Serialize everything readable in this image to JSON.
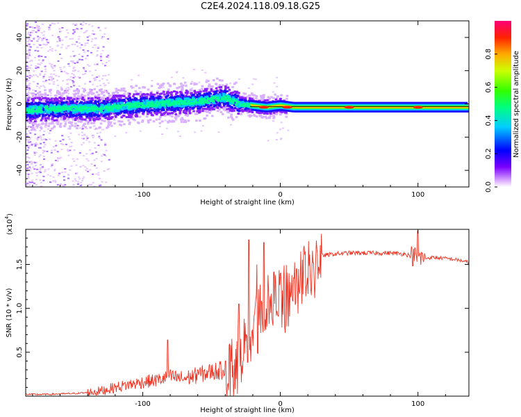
{
  "title": "C2E4.2024.118.09.18.G25",
  "chart_data": [
    {
      "type": "heatmap",
      "name": "spectrogram",
      "xlabel": "Height of straight line (km)",
      "ylabel": "Frequency (Hz)",
      "xlim": [
        -185,
        137
      ],
      "ylim": [
        -50,
        50
      ],
      "xticks": [
        -100,
        0,
        100
      ],
      "yticks": [
        -40,
        -20,
        0,
        20,
        40
      ],
      "grid": false,
      "colorbar": {
        "label": "Normalized spectral amplitude",
        "range": [
          0.0,
          1.0
        ],
        "ticks": [
          0.0,
          0.2,
          0.4,
          0.6,
          0.8
        ],
        "tick_labels": [
          "0.0",
          "0.2",
          "0.4",
          "0.6",
          "0.8"
        ],
        "colormap": "rainbow (white-violet-blue-cyan-green-yellow-orange-red-magenta)"
      },
      "ridge_frequency": {
        "x": [
          -185,
          -170,
          -150,
          -130,
          -110,
          -90,
          -70,
          -55,
          -40,
          -30,
          -20,
          -10,
          0,
          10,
          30,
          60,
          90,
          110,
          137
        ],
        "y": [
          -4,
          -3,
          -3,
          -3,
          -1,
          0,
          1,
          2,
          4,
          0,
          -1,
          -2,
          -1,
          -2,
          -2,
          -2,
          -2,
          -2,
          -2
        ]
      }
    },
    {
      "type": "line",
      "name": "snr",
      "xlabel": "Height of straight line (km)",
      "ylabel": "SNR (10 * v/v)",
      "y_multiplier_label": "(x10",
      "y_multiplier_exponent": "4",
      "xlim": [
        -185,
        137
      ],
      "ylim": [
        0,
        1.9
      ],
      "xticks": [
        -100,
        0,
        100
      ],
      "yticks": [
        0.5,
        1.0,
        1.5
      ],
      "ytick_labels": [
        "0.5",
        "1.0",
        "1.5"
      ],
      "grid": false,
      "series": [
        {
          "color": "#ee3322",
          "x": [
            -185,
            -170,
            -150,
            -140,
            -130,
            -120,
            -110,
            -100,
            -90,
            -85,
            -80,
            -70,
            -60,
            -50,
            -40,
            -35,
            -30,
            -25,
            -20,
            -15,
            -10,
            -5,
            0,
            5,
            10,
            15,
            20,
            25,
            30,
            40,
            50,
            60,
            70,
            80,
            90,
            95,
            100,
            105,
            110,
            120,
            130,
            137
          ],
          "y": [
            0.02,
            0.02,
            0.03,
            0.04,
            0.06,
            0.1,
            0.13,
            0.16,
            0.18,
            0.2,
            0.22,
            0.2,
            0.24,
            0.28,
            0.3,
            0.38,
            0.5,
            0.65,
            0.85,
            1.0,
            1.05,
            1.12,
            1.15,
            1.2,
            1.28,
            1.4,
            1.5,
            1.56,
            1.6,
            1.62,
            1.63,
            1.63,
            1.63,
            1.63,
            1.62,
            1.6,
            1.58,
            1.57,
            1.58,
            1.57,
            1.55,
            1.52
          ]
        }
      ],
      "spikes": {
        "x": [
          -82,
          -60,
          -40,
          -30,
          -23,
          -17,
          -12,
          -6,
          0,
          8,
          12,
          24,
          100
        ],
        "y": [
          0.64,
          0.3,
          0.4,
          1.05,
          1.78,
          1.5,
          1.75,
          1.5,
          1.4,
          1.18,
          1.45,
          1.52,
          1.88
        ]
      }
    }
  ]
}
